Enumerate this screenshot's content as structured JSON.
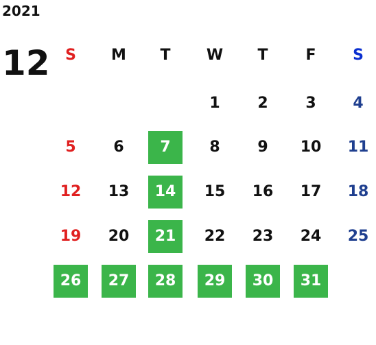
{
  "calendar": {
    "year": "2021",
    "month": "12",
    "weekdays": [
      "S",
      "M",
      "T",
      "W",
      "T",
      "F",
      "S"
    ],
    "weeks": [
      [
        null,
        null,
        null,
        {
          "day": "1",
          "highlighted": false
        },
        {
          "day": "2",
          "highlighted": false
        },
        {
          "day": "3",
          "highlighted": false
        },
        {
          "day": "4",
          "highlighted": false
        }
      ],
      [
        {
          "day": "5",
          "highlighted": false
        },
        {
          "day": "6",
          "highlighted": false
        },
        {
          "day": "7",
          "highlighted": true
        },
        {
          "day": "8",
          "highlighted": false
        },
        {
          "day": "9",
          "highlighted": false
        },
        {
          "day": "10",
          "highlighted": false
        },
        {
          "day": "11",
          "highlighted": false
        }
      ],
      [
        {
          "day": "12",
          "highlighted": false
        },
        {
          "day": "13",
          "highlighted": false
        },
        {
          "day": "14",
          "highlighted": true
        },
        {
          "day": "15",
          "highlighted": false
        },
        {
          "day": "16",
          "highlighted": false
        },
        {
          "day": "17",
          "highlighted": false
        },
        {
          "day": "18",
          "highlighted": false
        }
      ],
      [
        {
          "day": "19",
          "highlighted": false
        },
        {
          "day": "20",
          "highlighted": false
        },
        {
          "day": "21",
          "highlighted": true
        },
        {
          "day": "22",
          "highlighted": false
        },
        {
          "day": "23",
          "highlighted": false
        },
        {
          "day": "24",
          "highlighted": false
        },
        {
          "day": "25",
          "highlighted": false
        }
      ],
      [
        {
          "day": "26",
          "highlighted": true
        },
        {
          "day": "27",
          "highlighted": true
        },
        {
          "day": "28",
          "highlighted": true
        },
        {
          "day": "29",
          "highlighted": true
        },
        {
          "day": "30",
          "highlighted": true
        },
        {
          "day": "31",
          "highlighted": true
        },
        null
      ]
    ]
  }
}
